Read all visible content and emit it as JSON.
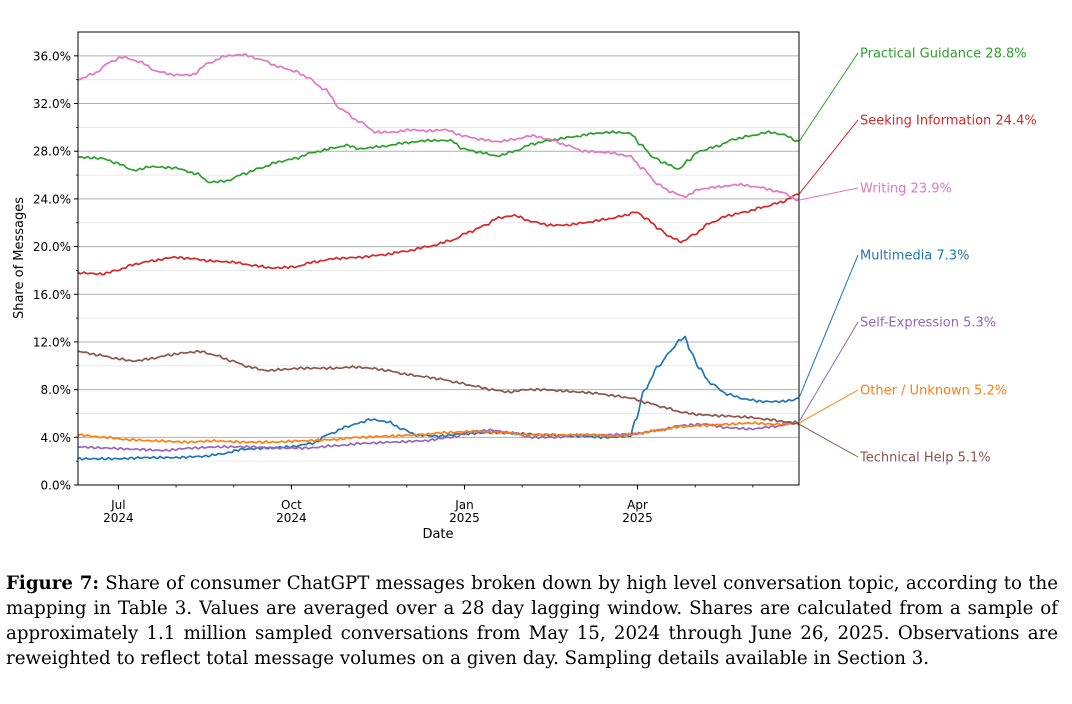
{
  "chart_data": {
    "type": "line",
    "xlabel": "Date",
    "ylabel": "Share of Messages",
    "ylim": [
      0,
      38
    ],
    "y_ticks": [
      "0.0%",
      "4.0%",
      "8.0%",
      "12.0%",
      "16.0%",
      "20.0%",
      "24.0%",
      "28.0%",
      "32.0%",
      "36.0%"
    ],
    "y_tick_values": [
      0,
      4,
      8,
      12,
      16,
      20,
      24,
      28,
      32,
      36
    ],
    "x_ticks": [
      {
        "month": "Jul",
        "year": "2024",
        "x": 1.03
      },
      {
        "month": "Oct",
        "year": "2024",
        "x": 4.03
      },
      {
        "month": "Jan",
        "year": "2025",
        "x": 7.03
      },
      {
        "month": "Apr",
        "year": "2025",
        "x": 10.03
      }
    ],
    "x_range": [
      0.33,
      12.83
    ],
    "x_unit": "months since 2024-06-01",
    "grid": "horizontal",
    "series": [
      {
        "name": "Practical Guidance",
        "final_label": "28.8%",
        "color": "#2ca02c",
        "points": [
          [
            0.33,
            27.5
          ],
          [
            0.75,
            27.4
          ],
          [
            1.0,
            27.0
          ],
          [
            1.3,
            26.4
          ],
          [
            1.6,
            26.7
          ],
          [
            2.0,
            26.6
          ],
          [
            2.4,
            26.1
          ],
          [
            2.6,
            25.4
          ],
          [
            2.9,
            25.5
          ],
          [
            3.2,
            26.1
          ],
          [
            3.5,
            26.6
          ],
          [
            3.8,
            27.1
          ],
          [
            4.1,
            27.4
          ],
          [
            4.4,
            27.9
          ],
          [
            4.8,
            28.3
          ],
          [
            5.0,
            28.5
          ],
          [
            5.2,
            28.2
          ],
          [
            5.6,
            28.4
          ],
          [
            6.0,
            28.7
          ],
          [
            6.4,
            28.9
          ],
          [
            6.8,
            28.9
          ],
          [
            7.0,
            28.2
          ],
          [
            7.3,
            27.9
          ],
          [
            7.6,
            27.6
          ],
          [
            7.9,
            28.0
          ],
          [
            8.2,
            28.6
          ],
          [
            8.5,
            28.9
          ],
          [
            8.9,
            29.2
          ],
          [
            9.3,
            29.5
          ],
          [
            9.6,
            29.6
          ],
          [
            9.9,
            29.5
          ],
          [
            10.1,
            28.5
          ],
          [
            10.3,
            27.5
          ],
          [
            10.5,
            27.0
          ],
          [
            10.75,
            26.5
          ],
          [
            10.9,
            27.2
          ],
          [
            11.1,
            28.0
          ],
          [
            11.4,
            28.4
          ],
          [
            11.7,
            29.0
          ],
          [
            12.0,
            29.3
          ],
          [
            12.3,
            29.6
          ],
          [
            12.55,
            29.4
          ],
          [
            12.83,
            28.8
          ]
        ]
      },
      {
        "name": "Seeking Information",
        "final_label": "24.4%",
        "color": "#d62728",
        "points": [
          [
            0.33,
            17.8
          ],
          [
            0.75,
            17.7
          ],
          [
            1.0,
            18.0
          ],
          [
            1.3,
            18.5
          ],
          [
            1.6,
            18.8
          ],
          [
            2.0,
            19.1
          ],
          [
            2.3,
            19.0
          ],
          [
            2.6,
            18.8
          ],
          [
            3.0,
            18.7
          ],
          [
            3.4,
            18.4
          ],
          [
            3.7,
            18.2
          ],
          [
            4.1,
            18.3
          ],
          [
            4.4,
            18.7
          ],
          [
            4.8,
            19.0
          ],
          [
            5.2,
            19.1
          ],
          [
            5.6,
            19.3
          ],
          [
            6.0,
            19.6
          ],
          [
            6.4,
            20.0
          ],
          [
            6.8,
            20.5
          ],
          [
            7.1,
            21.2
          ],
          [
            7.4,
            21.8
          ],
          [
            7.6,
            22.4
          ],
          [
            7.9,
            22.6
          ],
          [
            8.2,
            22.1
          ],
          [
            8.5,
            21.8
          ],
          [
            8.8,
            21.8
          ],
          [
            9.1,
            22.0
          ],
          [
            9.5,
            22.3
          ],
          [
            9.8,
            22.6
          ],
          [
            10.0,
            22.9
          ],
          [
            10.2,
            22.3
          ],
          [
            10.4,
            21.5
          ],
          [
            10.6,
            20.8
          ],
          [
            10.8,
            20.4
          ],
          [
            11.0,
            21.0
          ],
          [
            11.3,
            22.0
          ],
          [
            11.6,
            22.6
          ],
          [
            11.9,
            22.9
          ],
          [
            12.2,
            23.3
          ],
          [
            12.5,
            23.7
          ],
          [
            12.83,
            24.4
          ]
        ]
      },
      {
        "name": "Writing",
        "final_label": "23.9%",
        "color": "#e377c2",
        "points": [
          [
            0.33,
            34.0
          ],
          [
            0.6,
            34.5
          ],
          [
            0.9,
            35.5
          ],
          [
            1.1,
            35.9
          ],
          [
            1.4,
            35.5
          ],
          [
            1.7,
            34.7
          ],
          [
            2.0,
            34.4
          ],
          [
            2.3,
            34.4
          ],
          [
            2.6,
            35.4
          ],
          [
            2.9,
            36.0
          ],
          [
            3.2,
            36.1
          ],
          [
            3.5,
            35.7
          ],
          [
            3.8,
            35.1
          ],
          [
            4.1,
            34.7
          ],
          [
            4.3,
            34.2
          ],
          [
            4.6,
            33.2
          ],
          [
            4.9,
            31.5
          ],
          [
            5.2,
            30.5
          ],
          [
            5.5,
            29.6
          ],
          [
            5.8,
            29.6
          ],
          [
            6.1,
            29.8
          ],
          [
            6.4,
            29.7
          ],
          [
            6.7,
            29.8
          ],
          [
            7.0,
            29.3
          ],
          [
            7.3,
            29.0
          ],
          [
            7.6,
            28.8
          ],
          [
            7.9,
            29.0
          ],
          [
            8.2,
            29.3
          ],
          [
            8.5,
            29.0
          ],
          [
            8.8,
            28.5
          ],
          [
            9.1,
            28.0
          ],
          [
            9.5,
            27.9
          ],
          [
            9.9,
            27.6
          ],
          [
            10.1,
            26.6
          ],
          [
            10.4,
            25.2
          ],
          [
            10.6,
            24.6
          ],
          [
            10.85,
            24.2
          ],
          [
            11.1,
            24.8
          ],
          [
            11.4,
            25.0
          ],
          [
            11.8,
            25.2
          ],
          [
            12.1,
            25.0
          ],
          [
            12.5,
            24.6
          ],
          [
            12.83,
            23.9
          ]
        ]
      },
      {
        "name": "Multimedia",
        "final_label": "7.3%",
        "color": "#1f77b4",
        "points": [
          [
            0.33,
            2.2
          ],
          [
            0.7,
            2.2
          ],
          [
            1.0,
            2.2
          ],
          [
            1.5,
            2.3
          ],
          [
            2.0,
            2.3
          ],
          [
            2.5,
            2.4
          ],
          [
            2.8,
            2.6
          ],
          [
            3.2,
            3.0
          ],
          [
            3.6,
            3.1
          ],
          [
            4.0,
            3.2
          ],
          [
            4.4,
            3.5
          ],
          [
            4.7,
            4.3
          ],
          [
            5.0,
            4.9
          ],
          [
            5.2,
            5.2
          ],
          [
            5.4,
            5.5
          ],
          [
            5.7,
            5.3
          ],
          [
            5.95,
            4.7
          ],
          [
            6.2,
            4.2
          ],
          [
            6.6,
            4.1
          ],
          [
            7.0,
            4.3
          ],
          [
            7.5,
            4.4
          ],
          [
            8.0,
            4.3
          ],
          [
            8.5,
            4.2
          ],
          [
            9.0,
            4.1
          ],
          [
            9.5,
            4.0
          ],
          [
            9.9,
            4.1
          ],
          [
            10.0,
            5.5
          ],
          [
            10.15,
            8.0
          ],
          [
            10.4,
            10.0
          ],
          [
            10.6,
            11.2
          ],
          [
            10.75,
            12.1
          ],
          [
            10.85,
            12.4
          ],
          [
            10.95,
            11.2
          ],
          [
            11.1,
            9.8
          ],
          [
            11.3,
            8.5
          ],
          [
            11.6,
            7.6
          ],
          [
            11.9,
            7.2
          ],
          [
            12.2,
            7.0
          ],
          [
            12.5,
            7.0
          ],
          [
            12.7,
            7.1
          ],
          [
            12.83,
            7.3
          ]
        ]
      },
      {
        "name": "Self-Expression",
        "final_label": "5.3%",
        "color": "#9467bd",
        "points": [
          [
            0.33,
            3.2
          ],
          [
            0.8,
            3.1
          ],
          [
            1.3,
            3.0
          ],
          [
            1.8,
            2.9
          ],
          [
            2.3,
            3.1
          ],
          [
            2.8,
            3.2
          ],
          [
            3.3,
            3.2
          ],
          [
            3.8,
            3.1
          ],
          [
            4.3,
            3.1
          ],
          [
            4.8,
            3.3
          ],
          [
            5.3,
            3.5
          ],
          [
            5.8,
            3.6
          ],
          [
            6.3,
            3.7
          ],
          [
            6.8,
            4.0
          ],
          [
            7.2,
            4.5
          ],
          [
            7.5,
            4.6
          ],
          [
            7.8,
            4.4
          ],
          [
            8.2,
            4.0
          ],
          [
            8.6,
            4.0
          ],
          [
            9.0,
            4.2
          ],
          [
            9.5,
            4.2
          ],
          [
            10.0,
            4.3
          ],
          [
            10.4,
            4.6
          ],
          [
            10.8,
            5.0
          ],
          [
            11.2,
            5.1
          ],
          [
            11.6,
            4.8
          ],
          [
            12.0,
            4.7
          ],
          [
            12.4,
            4.9
          ],
          [
            12.83,
            5.3
          ]
        ]
      },
      {
        "name": "Other / Unknown",
        "final_label": "5.2%",
        "color": "#ff7f0e",
        "points": [
          [
            0.33,
            4.2
          ],
          [
            0.8,
            4.0
          ],
          [
            1.2,
            3.8
          ],
          [
            1.7,
            3.7
          ],
          [
            2.2,
            3.6
          ],
          [
            2.7,
            3.7
          ],
          [
            3.2,
            3.6
          ],
          [
            3.7,
            3.6
          ],
          [
            4.2,
            3.7
          ],
          [
            4.7,
            3.8
          ],
          [
            5.2,
            4.0
          ],
          [
            5.7,
            4.1
          ],
          [
            6.2,
            4.2
          ],
          [
            6.7,
            4.4
          ],
          [
            7.2,
            4.5
          ],
          [
            7.7,
            4.4
          ],
          [
            8.2,
            4.2
          ],
          [
            8.7,
            4.2
          ],
          [
            9.2,
            4.2
          ],
          [
            9.7,
            4.1
          ],
          [
            10.0,
            4.3
          ],
          [
            10.4,
            4.6
          ],
          [
            10.8,
            4.9
          ],
          [
            11.2,
            5.0
          ],
          [
            11.6,
            5.1
          ],
          [
            12.0,
            5.2
          ],
          [
            12.4,
            5.1
          ],
          [
            12.83,
            5.2
          ]
        ]
      },
      {
        "name": "Technical Help",
        "final_label": "5.1%",
        "color": "#8c564b",
        "points": [
          [
            0.33,
            11.2
          ],
          [
            0.7,
            10.9
          ],
          [
            1.0,
            10.6
          ],
          [
            1.3,
            10.4
          ],
          [
            1.6,
            10.6
          ],
          [
            1.9,
            10.9
          ],
          [
            2.2,
            11.1
          ],
          [
            2.45,
            11.2
          ],
          [
            2.7,
            10.9
          ],
          [
            3.0,
            10.4
          ],
          [
            3.3,
            9.9
          ],
          [
            3.6,
            9.6
          ],
          [
            3.9,
            9.7
          ],
          [
            4.2,
            9.8
          ],
          [
            4.5,
            9.8
          ],
          [
            4.8,
            9.8
          ],
          [
            5.1,
            9.9
          ],
          [
            5.4,
            9.8
          ],
          [
            5.7,
            9.6
          ],
          [
            6.0,
            9.3
          ],
          [
            6.3,
            9.1
          ],
          [
            6.6,
            8.9
          ],
          [
            6.9,
            8.6
          ],
          [
            7.2,
            8.3
          ],
          [
            7.5,
            8.0
          ],
          [
            7.8,
            7.8
          ],
          [
            8.1,
            8.0
          ],
          [
            8.4,
            8.0
          ],
          [
            8.7,
            7.9
          ],
          [
            9.0,
            7.8
          ],
          [
            9.3,
            7.7
          ],
          [
            9.6,
            7.5
          ],
          [
            9.9,
            7.3
          ],
          [
            10.2,
            6.9
          ],
          [
            10.5,
            6.5
          ],
          [
            10.8,
            6.1
          ],
          [
            11.1,
            5.9
          ],
          [
            11.5,
            5.8
          ],
          [
            11.9,
            5.7
          ],
          [
            12.3,
            5.5
          ],
          [
            12.6,
            5.3
          ],
          [
            12.83,
            5.1
          ]
        ]
      }
    ]
  },
  "caption": {
    "label": "Figure 7:",
    "text": "Share of consumer ChatGPT messages broken down by high level conversation topic, according to the mapping in Table 3. Values are averaged over a 28 day lagging window. Shares are calculated from a sample of approximately 1.1 million sampled conversations from May 15, 2024 through June 26, 2025. Observations are reweighted to reflect total message volumes on a given day. Sampling details available in Section 3."
  }
}
